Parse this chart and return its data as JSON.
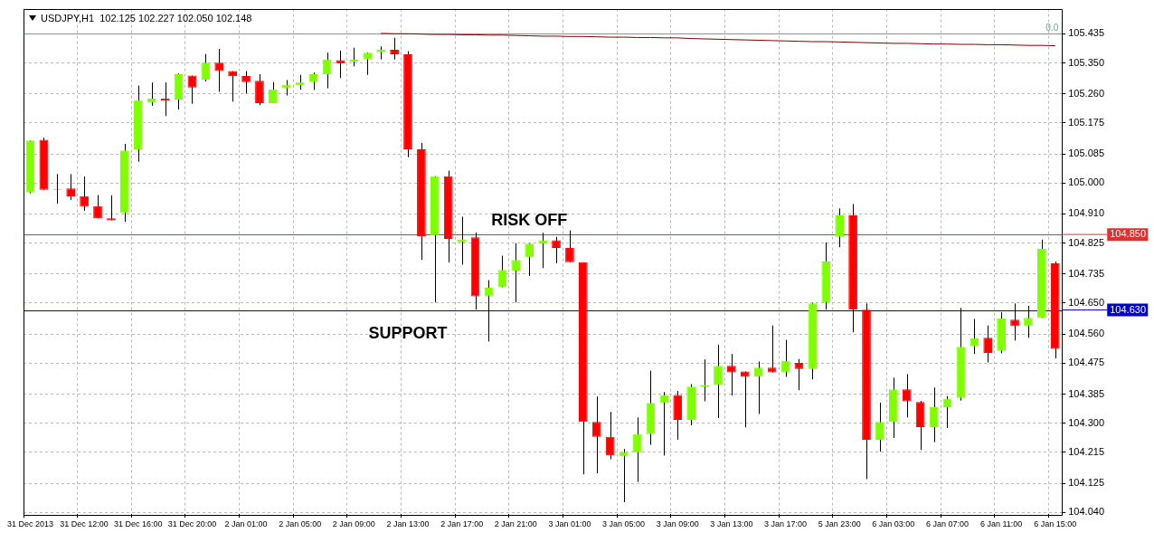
{
  "chart_data": {
    "type": "candlestick",
    "title": "USDJPY,H1  102.125 102.227 102.050 102.148",
    "categories": [
      "31 Dec 2013",
      null,
      null,
      null,
      "31 Dec 12:00",
      null,
      null,
      null,
      "31 Dec 16:00",
      null,
      null,
      null,
      "31 Dec 20:00",
      null,
      null,
      null,
      "2 Jan 01:00",
      null,
      null,
      null,
      "2 Jan 05:00",
      null,
      null,
      null,
      "2 Jan 09:00",
      null,
      null,
      null,
      "2 Jan 13:00",
      null,
      null,
      null,
      "2 Jan 17:00",
      null,
      null,
      null,
      "2 Jan 21:00",
      null,
      null,
      null,
      "3 Jan 01:00",
      null,
      null,
      null,
      "3 Jan 05:00",
      null,
      null,
      null,
      "3 Jan 09:00",
      null,
      null,
      null,
      "3 Jan 13:00",
      null,
      null,
      null,
      "3 Jan 17:00",
      null,
      null,
      null,
      "5 Jan 23:00",
      null,
      null,
      null,
      "6 Jan 03:00",
      null,
      null,
      null,
      "6 Jan 07:00",
      null,
      null,
      null,
      "6 Jan 11:00",
      null,
      null,
      null,
      "6 Jan 15:00"
    ],
    "ohlc": [
      [
        104.972,
        105.124,
        104.97,
        105.124
      ],
      [
        105.126,
        105.132,
        104.98,
        104.98
      ],
      [
        104.983,
        105.026,
        104.94,
        104.981
      ],
      [
        104.984,
        105.026,
        104.951,
        104.961
      ],
      [
        104.962,
        105.019,
        104.919,
        104.931
      ],
      [
        104.933,
        104.965,
        104.897,
        104.897
      ],
      [
        104.897,
        104.964,
        104.891,
        104.891
      ],
      [
        104.913,
        105.114,
        104.887,
        105.095
      ],
      [
        105.098,
        105.284,
        105.062,
        105.241
      ],
      [
        105.235,
        105.293,
        105.225,
        105.246
      ],
      [
        105.246,
        105.293,
        105.195,
        105.24
      ],
      [
        105.243,
        105.319,
        105.214,
        105.317
      ],
      [
        105.313,
        105.313,
        105.231,
        105.278
      ],
      [
        105.301,
        105.376,
        105.296,
        105.351
      ],
      [
        105.351,
        105.391,
        105.266,
        105.326
      ],
      [
        105.326,
        105.326,
        105.237,
        105.311
      ],
      [
        105.312,
        105.326,
        105.261,
        105.294
      ],
      [
        105.298,
        105.317,
        105.227,
        105.233
      ],
      [
        105.233,
        105.294,
        105.233,
        105.272
      ],
      [
        105.276,
        105.3,
        105.255,
        105.286
      ],
      [
        105.284,
        105.315,
        105.272,
        105.294
      ],
      [
        105.294,
        105.322,
        105.271,
        105.317
      ],
      [
        105.317,
        105.38,
        105.276,
        105.36
      ],
      [
        105.358,
        105.386,
        105.306,
        105.348
      ],
      [
        105.354,
        105.394,
        105.34,
        105.359
      ],
      [
        105.36,
        105.38,
        105.315,
        105.38
      ],
      [
        105.381,
        105.398,
        105.36,
        105.388
      ],
      [
        105.388,
        105.423,
        105.36,
        105.375
      ],
      [
        105.375,
        105.384,
        105.075,
        105.098
      ],
      [
        105.098,
        105.117,
        104.776,
        104.845
      ],
      [
        104.847,
        105.02,
        104.652,
        105.02
      ],
      [
        105.02,
        105.036,
        104.769,
        104.837
      ],
      [
        104.829,
        104.902,
        104.762,
        104.836
      ],
      [
        104.842,
        104.856,
        104.631,
        104.67
      ],
      [
        104.67,
        104.717,
        104.538,
        104.695
      ],
      [
        104.696,
        104.788,
        104.696,
        104.747
      ],
      [
        104.745,
        104.825,
        104.652,
        104.776
      ],
      [
        104.783,
        104.823,
        104.729,
        104.823
      ],
      [
        104.823,
        104.855,
        104.752,
        104.833
      ],
      [
        104.833,
        104.843,
        104.766,
        104.811
      ],
      [
        104.811,
        104.862,
        104.769,
        104.769
      ],
      [
        104.769,
        104.769,
        104.151,
        104.304
      ],
      [
        104.304,
        104.378,
        104.154,
        104.26
      ],
      [
        104.26,
        104.333,
        104.195,
        104.206
      ],
      [
        104.203,
        104.225,
        104.07,
        104.216
      ],
      [
        104.214,
        104.317,
        104.129,
        104.268
      ],
      [
        104.268,
        104.453,
        104.237,
        104.359
      ],
      [
        104.359,
        104.391,
        104.206,
        104.382
      ],
      [
        104.382,
        104.394,
        104.252,
        104.31
      ],
      [
        104.31,
        104.414,
        104.294,
        104.407
      ],
      [
        104.407,
        104.486,
        104.364,
        104.411
      ],
      [
        104.411,
        104.529,
        104.315,
        104.467
      ],
      [
        104.467,
        104.502,
        104.381,
        104.448
      ],
      [
        104.451,
        104.451,
        104.288,
        104.435
      ],
      [
        104.435,
        104.48,
        104.327,
        104.462
      ],
      [
        104.462,
        104.585,
        104.448,
        104.448
      ],
      [
        104.448,
        104.543,
        104.435,
        104.482
      ],
      [
        104.476,
        104.487,
        104.396,
        104.458
      ],
      [
        104.458,
        104.651,
        104.428,
        104.649
      ],
      [
        104.651,
        104.827,
        104.631,
        104.771
      ],
      [
        104.843,
        104.926,
        104.813,
        104.906
      ],
      [
        104.906,
        104.939,
        104.565,
        104.631
      ],
      [
        104.631,
        104.649,
        104.137,
        104.252
      ],
      [
        104.252,
        104.36,
        104.217,
        104.304
      ],
      [
        104.304,
        104.433,
        104.257,
        104.399
      ],
      [
        104.399,
        104.443,
        104.317,
        104.364
      ],
      [
        104.362,
        104.365,
        104.222,
        104.289
      ],
      [
        104.289,
        104.404,
        104.245,
        104.347
      ],
      [
        104.347,
        104.379,
        104.286,
        104.372
      ],
      [
        104.374,
        104.636,
        104.366,
        104.523
      ],
      [
        104.524,
        104.604,
        104.502,
        104.547
      ],
      [
        104.549,
        104.585,
        104.477,
        104.505
      ],
      [
        104.511,
        104.624,
        104.504,
        104.605
      ],
      [
        104.602,
        104.649,
        104.541,
        104.583
      ],
      [
        104.583,
        104.642,
        104.549,
        104.607
      ],
      [
        104.607,
        104.835,
        104.607,
        104.808
      ],
      [
        104.766,
        104.771,
        104.489,
        104.517
      ]
    ],
    "colors": [
      "#80ff00",
      "#ff0000",
      "#ff0000",
      "#ff0000",
      "#ff0000",
      "#ff0000",
      "#ff0000",
      "#80ff00",
      "#80ff00",
      "#80ff00",
      "#ff0000",
      "#80ff00",
      "#ff0000",
      "#80ff00",
      "#ff0000",
      "#ff0000",
      "#ff0000",
      "#ff0000",
      "#80ff00",
      "#80ff00",
      "#80ff00",
      "#80ff00",
      "#80ff00",
      "#ff0000",
      "#80ff00",
      "#80ff00",
      "#80ff00",
      "#ff0000",
      "#ff0000",
      "#ff0000",
      "#80ff00",
      "#ff0000",
      "#80ff00",
      "#ff0000",
      "#80ff00",
      "#80ff00",
      "#80ff00",
      "#80ff00",
      "#80ff00",
      "#ff0000",
      "#ff0000",
      "#ff0000",
      "#ff0000",
      "#ff0000",
      "#80ff00",
      "#80ff00",
      "#80ff00",
      "#80ff00",
      "#ff0000",
      "#80ff00",
      "#80ff00",
      "#80ff00",
      "#ff0000",
      "#ff0000",
      "#80ff00",
      "#ff0000",
      "#80ff00",
      "#ff0000",
      "#80ff00",
      "#80ff00",
      "#80ff00",
      "#ff0000",
      "#ff0000",
      "#80ff00",
      "#80ff00",
      "#ff0000",
      "#ff0000",
      "#80ff00",
      "#80ff00",
      "#80ff00",
      "#80ff00",
      "#ff0000",
      "#80ff00",
      "#ff0000",
      "#80ff00",
      "#80ff00",
      "#ff0000"
    ],
    "series": [
      {
        "type": "line",
        "color": "#800000",
        "values": [
          null,
          null,
          null,
          null,
          null,
          null,
          null,
          null,
          null,
          null,
          null,
          null,
          null,
          null,
          null,
          null,
          null,
          null,
          null,
          null,
          null,
          null,
          null,
          null,
          null,
          null,
          105.436,
          105.435,
          105.435,
          105.434,
          105.433,
          105.433,
          105.432,
          105.432,
          105.431,
          105.431,
          105.43,
          105.429,
          105.428,
          105.428,
          105.427,
          105.427,
          105.426,
          105.425,
          105.425,
          105.424,
          105.424,
          105.423,
          105.423,
          105.421,
          105.42,
          105.419,
          105.418,
          105.417,
          105.416,
          105.415,
          105.414,
          105.413,
          105.412,
          105.412,
          105.411,
          105.41,
          105.409,
          105.408,
          105.407,
          105.407,
          105.406,
          105.405,
          105.405,
          105.404,
          105.404,
          105.403,
          105.403,
          105.402,
          105.401,
          105.401,
          105.4
        ]
      }
    ],
    "ylim": [
      104.035,
      105.508
    ],
    "yticks": [
      {
        "value": 104.04,
        "label": "104.040"
      },
      {
        "value": 104.125,
        "label": "104.125"
      },
      {
        "value": 104.215,
        "label": "104.215"
      },
      {
        "value": 104.3,
        "label": "104.300"
      },
      {
        "value": 104.385,
        "label": "104.385"
      },
      {
        "value": 104.475,
        "label": "104.475"
      },
      {
        "value": 104.56,
        "label": "104.560"
      },
      {
        "value": 104.65,
        "label": "104.650"
      },
      {
        "value": 104.735,
        "label": "104.735"
      },
      {
        "value": 104.825,
        "label": "104.825"
      },
      {
        "value": 104.91,
        "label": "104.910"
      },
      {
        "value": 105.0,
        "label": "105.000"
      },
      {
        "value": 105.085,
        "label": "105.085"
      },
      {
        "value": 105.175,
        "label": "105.175"
      },
      {
        "value": 105.26,
        "label": "105.260"
      },
      {
        "value": 105.35,
        "label": "105.350"
      },
      {
        "value": 105.435,
        "label": "105.435"
      }
    ],
    "ref_lines": [
      {
        "axis": "y",
        "value": 104.85,
        "color": "#e03030",
        "label": "104.850"
      },
      {
        "axis": "y",
        "value": 104.63,
        "color": "#0000c0",
        "label": "104.630"
      },
      {
        "axis": "y",
        "value": 105.435,
        "color": "#60a890"
      }
    ],
    "annotations": [
      "RISK OFF",
      "SUPPORT",
      {
        "text": "0.0",
        "y": 105.435
      }
    ],
    "grid": true
  }
}
